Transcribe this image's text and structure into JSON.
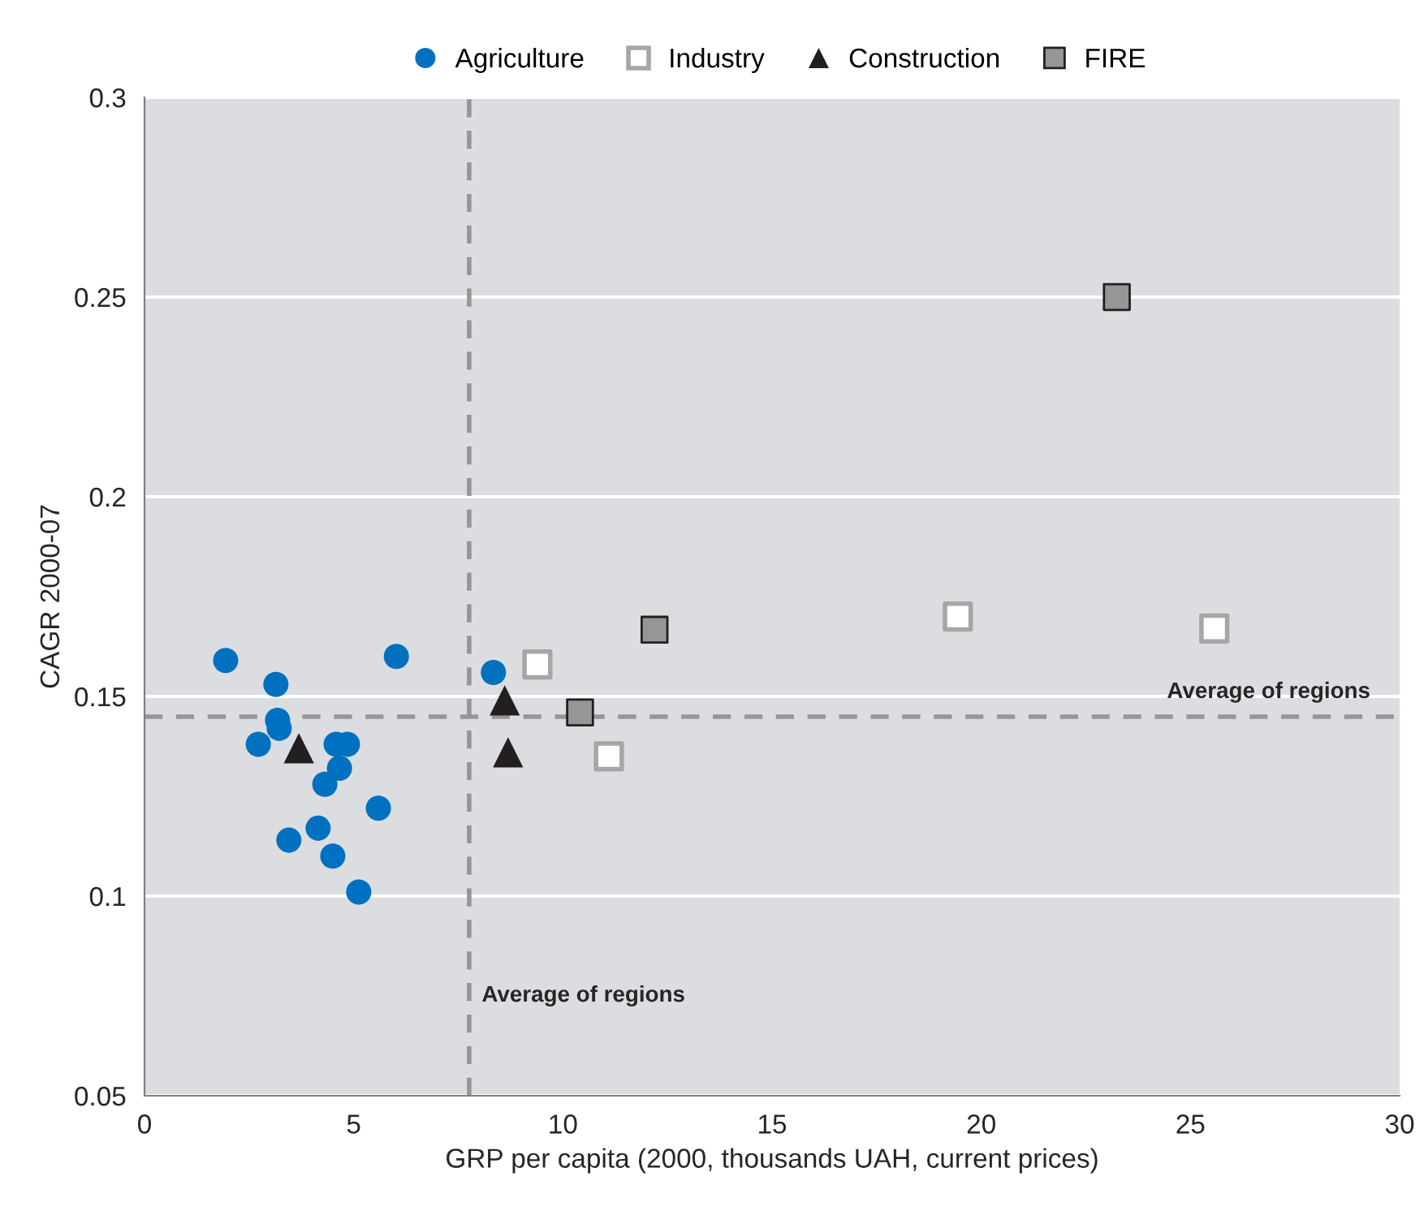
{
  "chart_data": {
    "type": "scatter",
    "xlabel": "GRP per capita (2000, thousands UAH, current prices)",
    "ylabel": "CAGR 2000-07",
    "series": [
      {
        "name": "Agriculture",
        "color": "#0070c0",
        "marker": "circle",
        "x": [
          1.94,
          6.02,
          3.14,
          3.18,
          3.22,
          2.72,
          4.58,
          4.85,
          4.66,
          4.31,
          5.59,
          4.15,
          3.45,
          4.5,
          5.12,
          8.34
        ],
        "values": [
          0.159,
          0.16,
          0.153,
          0.144,
          0.142,
          0.138,
          0.138,
          0.138,
          0.132,
          0.128,
          0.122,
          0.117,
          0.114,
          0.11,
          0.101,
          0.156
        ]
      },
      {
        "name": "Industry",
        "color": "#ffffff",
        "marker": "square",
        "x": [
          9.39,
          11.1,
          19.44,
          25.57
        ],
        "values": [
          0.158,
          0.135,
          0.17,
          0.167
        ]
      },
      {
        "name": "Construction",
        "color": "#231f20",
        "marker": "triangle",
        "x": [
          3.69,
          8.61,
          8.69
        ],
        "values": [
          0.137,
          0.149,
          0.136
        ]
      },
      {
        "name": "FIRE",
        "color": "#969696",
        "marker": "square",
        "x": [
          12.19,
          10.41,
          23.24
        ],
        "values": [
          0.1667,
          0.146,
          0.25
        ]
      }
    ],
    "ref_lines": [
      {
        "axis": "x",
        "value": 7.76,
        "label": "Average of regions",
        "color": "#969696",
        "line_style": "dashed"
      },
      {
        "axis": "y",
        "value": 0.1449,
        "label": "Average of regions",
        "color": "#969696",
        "line_style": "dashed"
      }
    ],
    "xlim": [
      0,
      30
    ],
    "xticks": [
      0,
      5,
      10,
      15,
      20,
      25,
      30
    ],
    "ylim": [
      0.05,
      0.3
    ],
    "yticks": [
      0.05,
      0.1,
      0.15,
      0.2,
      0.25,
      0.3
    ],
    "grid": "y",
    "legend": "top"
  }
}
